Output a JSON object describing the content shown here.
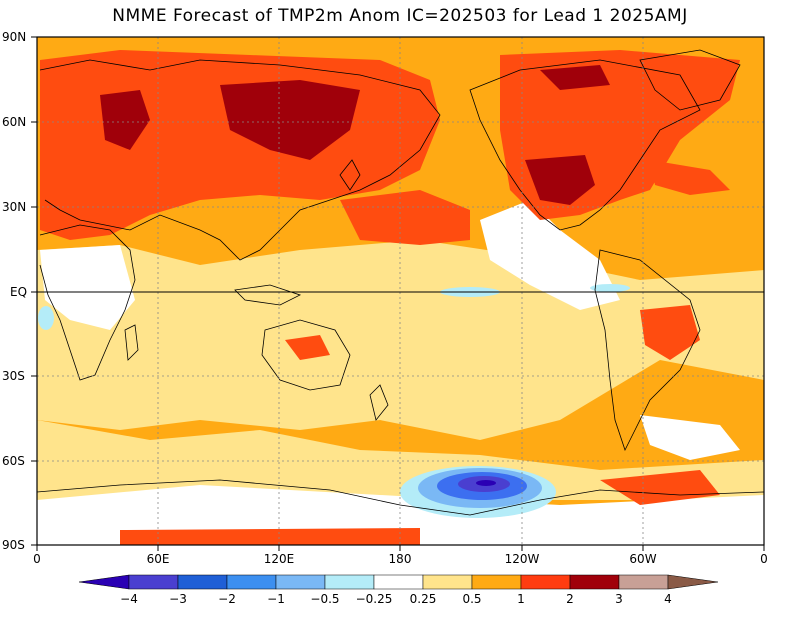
{
  "title": "NMME Forecast of TMP2m Anom IC=202503 for Lead 1 2025AMJ",
  "lat_ticks": [
    "90N",
    "60N",
    "30N",
    "EQ",
    "30S",
    "60S",
    "90S"
  ],
  "lon_ticks": [
    "0",
    "60E",
    "120E",
    "180",
    "120W",
    "60W",
    "0"
  ],
  "colorbar": {
    "labels": [
      "−4",
      "−3",
      "−2",
      "−1",
      "−0.5",
      "−0.25",
      "0.25",
      "0.5",
      "1",
      "2",
      "3",
      "4"
    ],
    "colors": [
      "#2a00b4",
      "#4a3fd0",
      "#1f5fd6",
      "#3c8ff0",
      "#7ab8f5",
      "#b4ecf8",
      "#ffffff",
      "#ffe48c",
      "#ffaa14",
      "#ff3c10",
      "#a0000a",
      "#c8a096",
      "#8a5a46"
    ]
  },
  "legend_colors": {
    "band_0p25_0p5": "#ffe48c",
    "band_0p5_1": "#ffaa14",
    "band_1_2": "#ff4c10",
    "band_2_3": "#a0000a",
    "cool_weak": "#b4ecf8",
    "cool_med": "#7ab8f5",
    "cool_strong": "#3c6ff0",
    "cool_extreme": "#2a00b4"
  }
}
